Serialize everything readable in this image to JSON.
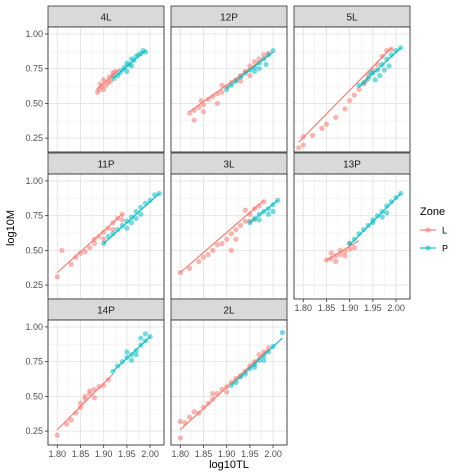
{
  "chart_data": {
    "type": "scatter",
    "facet_order": [
      "4L",
      "12P",
      "5L",
      "11P",
      "3L",
      "13P",
      "14P",
      "2L"
    ],
    "xlabel": "log10TL",
    "ylabel": "log10M",
    "xlim": [
      1.78,
      2.03
    ],
    "ylim": [
      0.15,
      1.05
    ],
    "x_ticks": [
      1.8,
      1.85,
      1.9,
      1.95,
      2.0
    ],
    "x_tick_labels": [
      "1.80",
      "1.85",
      "1.90",
      "1.95",
      "2.00"
    ],
    "y_ticks": [
      0.25,
      0.5,
      0.75,
      1.0
    ],
    "y_tick_labels": [
      "0.25",
      "0.50",
      "0.75",
      "1.00"
    ],
    "legend": {
      "title": "Zone",
      "placement": "right",
      "entries": [
        {
          "key": "L",
          "label": "L",
          "color": "#F8766D"
        },
        {
          "key": "P",
          "label": "P",
          "color": "#00BFC4"
        }
      ]
    },
    "facets": [
      {
        "name": "4L",
        "L": [
          [
            1.887,
            0.58
          ],
          [
            1.89,
            0.6
          ],
          [
            1.895,
            0.62
          ],
          [
            1.9,
            0.6
          ],
          [
            1.893,
            0.64
          ],
          [
            1.905,
            0.63
          ],
          [
            1.91,
            0.65
          ],
          [
            1.9,
            0.67
          ],
          [
            1.915,
            0.66
          ],
          [
            1.912,
            0.69
          ],
          [
            1.92,
            0.7
          ],
          [
            1.92,
            0.72
          ],
          [
            1.925,
            0.73
          ]
        ],
        "P": [
          [
            1.922,
            0.68
          ],
          [
            1.93,
            0.7
          ],
          [
            1.935,
            0.72
          ],
          [
            1.94,
            0.74
          ],
          [
            1.945,
            0.76
          ],
          [
            1.95,
            0.79
          ],
          [
            1.955,
            0.78
          ],
          [
            1.96,
            0.82
          ],
          [
            1.965,
            0.81
          ],
          [
            1.97,
            0.84
          ],
          [
            1.975,
            0.85
          ],
          [
            1.98,
            0.86
          ],
          [
            1.985,
            0.88
          ],
          [
            1.99,
            0.87
          ],
          [
            1.95,
            0.73
          ],
          [
            1.96,
            0.77
          ]
        ],
        "L_fit": [
          [
            1.885,
            0.6
          ],
          [
            1.935,
            0.75
          ]
        ],
        "P_fit": [
          [
            1.92,
            0.68
          ],
          [
            1.99,
            0.88
          ]
        ]
      },
      {
        "name": "12P",
        "L": [
          [
            1.82,
            0.43
          ],
          [
            1.83,
            0.45
          ],
          [
            1.84,
            0.47
          ],
          [
            1.85,
            0.49
          ],
          [
            1.86,
            0.53
          ],
          [
            1.87,
            0.55
          ],
          [
            1.88,
            0.57
          ],
          [
            1.89,
            0.58
          ],
          [
            1.9,
            0.62
          ],
          [
            1.91,
            0.65
          ],
          [
            1.92,
            0.67
          ],
          [
            1.93,
            0.7
          ],
          [
            1.94,
            0.73
          ],
          [
            1.95,
            0.77
          ],
          [
            1.96,
            0.8
          ],
          [
            1.97,
            0.82
          ],
          [
            1.98,
            0.85
          ],
          [
            1.99,
            0.86
          ],
          [
            1.85,
            0.44
          ],
          [
            1.88,
            0.5
          ],
          [
            1.89,
            0.63
          ],
          [
            1.93,
            0.66
          ],
          [
            1.95,
            0.7
          ],
          [
            1.83,
            0.38
          ],
          [
            1.845,
            0.52
          ]
        ],
        "P": [
          [
            1.9,
            0.6
          ],
          [
            1.91,
            0.63
          ],
          [
            1.92,
            0.66
          ],
          [
            1.93,
            0.69
          ],
          [
            1.94,
            0.72
          ],
          [
            1.95,
            0.74
          ],
          [
            1.96,
            0.76
          ],
          [
            1.97,
            0.79
          ],
          [
            1.98,
            0.82
          ],
          [
            1.99,
            0.85
          ],
          [
            2.0,
            0.88
          ],
          [
            1.96,
            0.73
          ],
          [
            1.97,
            0.75
          ],
          [
            1.985,
            0.78
          ]
        ],
        "L_fit": [
          [
            1.82,
            0.44
          ],
          [
            2.0,
            0.87
          ]
        ],
        "P_fit": [
          [
            1.9,
            0.61
          ],
          [
            2.0,
            0.87
          ]
        ]
      },
      {
        "name": "5L",
        "L": [
          [
            1.79,
            0.18
          ],
          [
            1.8,
            0.2
          ],
          [
            1.82,
            0.27
          ],
          [
            1.84,
            0.32
          ],
          [
            1.85,
            0.35
          ],
          [
            1.87,
            0.4
          ],
          [
            1.89,
            0.46
          ],
          [
            1.9,
            0.52
          ],
          [
            1.91,
            0.56
          ],
          [
            1.92,
            0.6
          ],
          [
            1.93,
            0.64
          ],
          [
            1.94,
            0.7
          ],
          [
            1.95,
            0.74
          ],
          [
            1.96,
            0.78
          ],
          [
            1.97,
            0.84
          ],
          [
            1.98,
            0.88
          ],
          [
            1.99,
            0.89
          ],
          [
            1.8,
            0.26
          ],
          [
            1.935,
            0.66
          ]
        ],
        "P": [
          [
            1.92,
            0.63
          ],
          [
            1.93,
            0.65
          ],
          [
            1.94,
            0.68
          ],
          [
            1.95,
            0.72
          ],
          [
            1.96,
            0.74
          ],
          [
            1.97,
            0.78
          ],
          [
            1.98,
            0.82
          ],
          [
            1.99,
            0.85
          ],
          [
            2.0,
            0.88
          ],
          [
            2.01,
            0.9
          ],
          [
            1.965,
            0.7
          ],
          [
            1.975,
            0.74
          ],
          [
            1.985,
            0.77
          ],
          [
            1.955,
            0.67
          ],
          [
            1.945,
            0.72
          ]
        ],
        "L_fit": [
          [
            1.79,
            0.22
          ],
          [
            1.99,
            0.9
          ]
        ],
        "P_fit": [
          [
            1.92,
            0.62
          ],
          [
            2.01,
            0.9
          ]
        ]
      },
      {
        "name": "11P",
        "L": [
          [
            1.8,
            0.31
          ],
          [
            1.81,
            0.5
          ],
          [
            1.83,
            0.4
          ],
          [
            1.84,
            0.45
          ],
          [
            1.85,
            0.48
          ],
          [
            1.87,
            0.52
          ],
          [
            1.88,
            0.58
          ],
          [
            1.89,
            0.6
          ],
          [
            1.9,
            0.63
          ],
          [
            1.91,
            0.66
          ],
          [
            1.92,
            0.7
          ],
          [
            1.93,
            0.73
          ],
          [
            1.94,
            0.76
          ],
          [
            1.86,
            0.49
          ],
          [
            1.9,
            0.58
          ],
          [
            1.92,
            0.65
          ],
          [
            1.88,
            0.55
          ],
          [
            1.94,
            0.72
          ]
        ],
        "P": [
          [
            1.9,
            0.55
          ],
          [
            1.91,
            0.6
          ],
          [
            1.92,
            0.62
          ],
          [
            1.93,
            0.65
          ],
          [
            1.94,
            0.68
          ],
          [
            1.95,
            0.71
          ],
          [
            1.96,
            0.74
          ],
          [
            1.97,
            0.78
          ],
          [
            1.98,
            0.81
          ],
          [
            1.99,
            0.84
          ],
          [
            2.0,
            0.86
          ],
          [
            2.01,
            0.9
          ],
          [
            2.02,
            0.91
          ],
          [
            1.96,
            0.7
          ],
          [
            1.98,
            0.76
          ],
          [
            1.95,
            0.66
          ],
          [
            1.97,
            0.73
          ]
        ],
        "L_fit": [
          [
            1.8,
            0.34
          ],
          [
            1.94,
            0.76
          ]
        ],
        "P_fit": [
          [
            1.9,
            0.55
          ],
          [
            2.02,
            0.91
          ]
        ]
      },
      {
        "name": "3L",
        "L": [
          [
            1.8,
            0.34
          ],
          [
            1.82,
            0.37
          ],
          [
            1.84,
            0.42
          ],
          [
            1.85,
            0.45
          ],
          [
            1.86,
            0.47
          ],
          [
            1.87,
            0.5
          ],
          [
            1.88,
            0.54
          ],
          [
            1.89,
            0.55
          ],
          [
            1.9,
            0.58
          ],
          [
            1.91,
            0.62
          ],
          [
            1.92,
            0.65
          ],
          [
            1.93,
            0.68
          ],
          [
            1.94,
            0.71
          ],
          [
            1.95,
            0.76
          ],
          [
            1.96,
            0.8
          ],
          [
            1.97,
            0.82
          ],
          [
            1.98,
            0.85
          ],
          [
            1.92,
            0.58
          ],
          [
            1.95,
            0.71
          ],
          [
            1.91,
            0.5
          ],
          [
            1.96,
            0.72
          ],
          [
            1.94,
            0.79
          ]
        ],
        "P": [
          [
            1.95,
            0.7
          ],
          [
            1.96,
            0.73
          ],
          [
            1.97,
            0.76
          ],
          [
            1.98,
            0.78
          ],
          [
            1.99,
            0.8
          ],
          [
            2.0,
            0.83
          ],
          [
            2.01,
            0.86
          ],
          [
            1.97,
            0.72
          ],
          [
            1.99,
            0.76
          ],
          [
            2.0,
            0.78
          ]
        ],
        "L_fit": [
          [
            1.8,
            0.34
          ],
          [
            1.98,
            0.86
          ]
        ],
        "P_fit": [
          [
            1.95,
            0.7
          ],
          [
            2.01,
            0.86
          ]
        ]
      },
      {
        "name": "13P",
        "L": [
          [
            1.85,
            0.43
          ],
          [
            1.86,
            0.44
          ],
          [
            1.87,
            0.46
          ],
          [
            1.88,
            0.47
          ],
          [
            1.89,
            0.49
          ],
          [
            1.9,
            0.51
          ],
          [
            1.91,
            0.52
          ],
          [
            1.86,
            0.48
          ],
          [
            1.88,
            0.5
          ],
          [
            1.9,
            0.55
          ],
          [
            1.87,
            0.42
          ],
          [
            1.89,
            0.46
          ]
        ],
        "P": [
          [
            1.9,
            0.55
          ],
          [
            1.91,
            0.58
          ],
          [
            1.92,
            0.62
          ],
          [
            1.93,
            0.65
          ],
          [
            1.94,
            0.68
          ],
          [
            1.95,
            0.72
          ],
          [
            1.96,
            0.75
          ],
          [
            1.97,
            0.78
          ],
          [
            1.98,
            0.82
          ],
          [
            1.99,
            0.85
          ],
          [
            2.0,
            0.88
          ],
          [
            2.01,
            0.91
          ],
          [
            1.95,
            0.7
          ],
          [
            1.97,
            0.74
          ],
          [
            1.98,
            0.77
          ]
        ],
        "L_fit": [
          [
            1.85,
            0.43
          ],
          [
            1.92,
            0.57
          ]
        ],
        "P_fit": [
          [
            1.9,
            0.54
          ],
          [
            2.01,
            0.91
          ]
        ]
      },
      {
        "name": "14P",
        "L": [
          [
            1.8,
            0.22
          ],
          [
            1.82,
            0.3
          ],
          [
            1.83,
            0.33
          ],
          [
            1.84,
            0.38
          ],
          [
            1.85,
            0.45
          ],
          [
            1.86,
            0.48
          ],
          [
            1.87,
            0.52
          ],
          [
            1.88,
            0.55
          ],
          [
            1.89,
            0.57
          ],
          [
            1.9,
            0.58
          ],
          [
            1.91,
            0.62
          ],
          [
            1.86,
            0.5
          ],
          [
            1.87,
            0.54
          ],
          [
            1.88,
            0.49
          ],
          [
            1.85,
            0.42
          ]
        ],
        "P": [
          [
            1.92,
            0.68
          ],
          [
            1.93,
            0.72
          ],
          [
            1.94,
            0.75
          ],
          [
            1.95,
            0.78
          ],
          [
            1.96,
            0.8
          ],
          [
            1.97,
            0.83
          ],
          [
            1.98,
            0.87
          ],
          [
            1.99,
            0.9
          ],
          [
            2.0,
            0.93
          ],
          [
            1.95,
            0.82
          ],
          [
            1.96,
            0.76
          ],
          [
            1.97,
            0.8
          ],
          [
            1.98,
            0.92
          ],
          [
            1.99,
            0.95
          ]
        ],
        "L_fit": [
          [
            1.8,
            0.26
          ],
          [
            1.92,
            0.66
          ]
        ],
        "P_fit": [
          [
            1.92,
            0.68
          ],
          [
            2.0,
            0.93
          ]
        ]
      },
      {
        "name": "2L",
        "L": [
          [
            1.8,
            0.2
          ],
          [
            1.81,
            0.31
          ],
          [
            1.82,
            0.35
          ],
          [
            1.84,
            0.38
          ],
          [
            1.85,
            0.42
          ],
          [
            1.86,
            0.45
          ],
          [
            1.87,
            0.48
          ],
          [
            1.88,
            0.52
          ],
          [
            1.89,
            0.55
          ],
          [
            1.9,
            0.57
          ],
          [
            1.91,
            0.6
          ],
          [
            1.92,
            0.63
          ],
          [
            1.93,
            0.65
          ],
          [
            1.94,
            0.68
          ],
          [
            1.95,
            0.72
          ],
          [
            1.96,
            0.75
          ],
          [
            1.97,
            0.8
          ],
          [
            1.98,
            0.82
          ],
          [
            1.99,
            0.85
          ],
          [
            1.8,
            0.32
          ],
          [
            1.83,
            0.39
          ],
          [
            1.87,
            0.52
          ],
          [
            1.9,
            0.53
          ]
        ],
        "P": [
          [
            1.91,
            0.58
          ],
          [
            1.92,
            0.6
          ],
          [
            1.93,
            0.64
          ],
          [
            1.94,
            0.66
          ],
          [
            1.95,
            0.7
          ],
          [
            1.96,
            0.73
          ],
          [
            1.97,
            0.76
          ],
          [
            1.98,
            0.79
          ],
          [
            1.99,
            0.82
          ],
          [
            2.0,
            0.86
          ],
          [
            2.02,
            0.96
          ],
          [
            1.96,
            0.71
          ],
          [
            1.98,
            0.76
          ]
        ],
        "L_fit": [
          [
            1.8,
            0.26
          ],
          [
            1.99,
            0.84
          ]
        ],
        "P_fit": [
          [
            1.91,
            0.58
          ],
          [
            2.02,
            0.92
          ]
        ]
      }
    ]
  }
}
